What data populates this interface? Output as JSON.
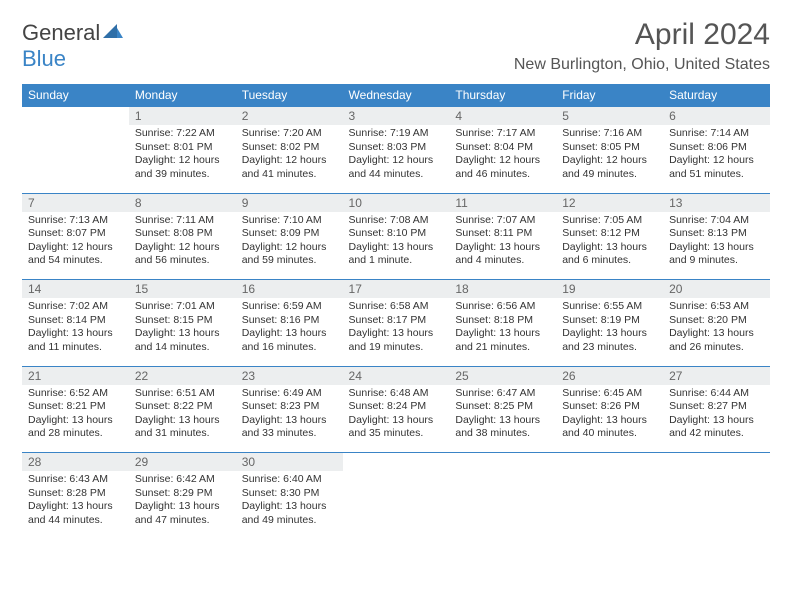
{
  "logo": {
    "text1": "General",
    "text2": "Blue"
  },
  "title": "April 2024",
  "location": "New Burlington, Ohio, United States",
  "colors": {
    "header_bg": "#3a84c6",
    "header_text": "#ffffff",
    "daynum_bg": "#eceeef",
    "border": "#3a84c6",
    "body_text": "#333333",
    "title_text": "#555555"
  },
  "day_headers": [
    "Sunday",
    "Monday",
    "Tuesday",
    "Wednesday",
    "Thursday",
    "Friday",
    "Saturday"
  ],
  "weeks": [
    [
      null,
      {
        "n": "1",
        "sr": "Sunrise: 7:22 AM",
        "ss": "Sunset: 8:01 PM",
        "dl": "Daylight: 12 hours and 39 minutes."
      },
      {
        "n": "2",
        "sr": "Sunrise: 7:20 AM",
        "ss": "Sunset: 8:02 PM",
        "dl": "Daylight: 12 hours and 41 minutes."
      },
      {
        "n": "3",
        "sr": "Sunrise: 7:19 AM",
        "ss": "Sunset: 8:03 PM",
        "dl": "Daylight: 12 hours and 44 minutes."
      },
      {
        "n": "4",
        "sr": "Sunrise: 7:17 AM",
        "ss": "Sunset: 8:04 PM",
        "dl": "Daylight: 12 hours and 46 minutes."
      },
      {
        "n": "5",
        "sr": "Sunrise: 7:16 AM",
        "ss": "Sunset: 8:05 PM",
        "dl": "Daylight: 12 hours and 49 minutes."
      },
      {
        "n": "6",
        "sr": "Sunrise: 7:14 AM",
        "ss": "Sunset: 8:06 PM",
        "dl": "Daylight: 12 hours and 51 minutes."
      }
    ],
    [
      {
        "n": "7",
        "sr": "Sunrise: 7:13 AM",
        "ss": "Sunset: 8:07 PM",
        "dl": "Daylight: 12 hours and 54 minutes."
      },
      {
        "n": "8",
        "sr": "Sunrise: 7:11 AM",
        "ss": "Sunset: 8:08 PM",
        "dl": "Daylight: 12 hours and 56 minutes."
      },
      {
        "n": "9",
        "sr": "Sunrise: 7:10 AM",
        "ss": "Sunset: 8:09 PM",
        "dl": "Daylight: 12 hours and 59 minutes."
      },
      {
        "n": "10",
        "sr": "Sunrise: 7:08 AM",
        "ss": "Sunset: 8:10 PM",
        "dl": "Daylight: 13 hours and 1 minute."
      },
      {
        "n": "11",
        "sr": "Sunrise: 7:07 AM",
        "ss": "Sunset: 8:11 PM",
        "dl": "Daylight: 13 hours and 4 minutes."
      },
      {
        "n": "12",
        "sr": "Sunrise: 7:05 AM",
        "ss": "Sunset: 8:12 PM",
        "dl": "Daylight: 13 hours and 6 minutes."
      },
      {
        "n": "13",
        "sr": "Sunrise: 7:04 AM",
        "ss": "Sunset: 8:13 PM",
        "dl": "Daylight: 13 hours and 9 minutes."
      }
    ],
    [
      {
        "n": "14",
        "sr": "Sunrise: 7:02 AM",
        "ss": "Sunset: 8:14 PM",
        "dl": "Daylight: 13 hours and 11 minutes."
      },
      {
        "n": "15",
        "sr": "Sunrise: 7:01 AM",
        "ss": "Sunset: 8:15 PM",
        "dl": "Daylight: 13 hours and 14 minutes."
      },
      {
        "n": "16",
        "sr": "Sunrise: 6:59 AM",
        "ss": "Sunset: 8:16 PM",
        "dl": "Daylight: 13 hours and 16 minutes."
      },
      {
        "n": "17",
        "sr": "Sunrise: 6:58 AM",
        "ss": "Sunset: 8:17 PM",
        "dl": "Daylight: 13 hours and 19 minutes."
      },
      {
        "n": "18",
        "sr": "Sunrise: 6:56 AM",
        "ss": "Sunset: 8:18 PM",
        "dl": "Daylight: 13 hours and 21 minutes."
      },
      {
        "n": "19",
        "sr": "Sunrise: 6:55 AM",
        "ss": "Sunset: 8:19 PM",
        "dl": "Daylight: 13 hours and 23 minutes."
      },
      {
        "n": "20",
        "sr": "Sunrise: 6:53 AM",
        "ss": "Sunset: 8:20 PM",
        "dl": "Daylight: 13 hours and 26 minutes."
      }
    ],
    [
      {
        "n": "21",
        "sr": "Sunrise: 6:52 AM",
        "ss": "Sunset: 8:21 PM",
        "dl": "Daylight: 13 hours and 28 minutes."
      },
      {
        "n": "22",
        "sr": "Sunrise: 6:51 AM",
        "ss": "Sunset: 8:22 PM",
        "dl": "Daylight: 13 hours and 31 minutes."
      },
      {
        "n": "23",
        "sr": "Sunrise: 6:49 AM",
        "ss": "Sunset: 8:23 PM",
        "dl": "Daylight: 13 hours and 33 minutes."
      },
      {
        "n": "24",
        "sr": "Sunrise: 6:48 AM",
        "ss": "Sunset: 8:24 PM",
        "dl": "Daylight: 13 hours and 35 minutes."
      },
      {
        "n": "25",
        "sr": "Sunrise: 6:47 AM",
        "ss": "Sunset: 8:25 PM",
        "dl": "Daylight: 13 hours and 38 minutes."
      },
      {
        "n": "26",
        "sr": "Sunrise: 6:45 AM",
        "ss": "Sunset: 8:26 PM",
        "dl": "Daylight: 13 hours and 40 minutes."
      },
      {
        "n": "27",
        "sr": "Sunrise: 6:44 AM",
        "ss": "Sunset: 8:27 PM",
        "dl": "Daylight: 13 hours and 42 minutes."
      }
    ],
    [
      {
        "n": "28",
        "sr": "Sunrise: 6:43 AM",
        "ss": "Sunset: 8:28 PM",
        "dl": "Daylight: 13 hours and 44 minutes."
      },
      {
        "n": "29",
        "sr": "Sunrise: 6:42 AM",
        "ss": "Sunset: 8:29 PM",
        "dl": "Daylight: 13 hours and 47 minutes."
      },
      {
        "n": "30",
        "sr": "Sunrise: 6:40 AM",
        "ss": "Sunset: 8:30 PM",
        "dl": "Daylight: 13 hours and 49 minutes."
      },
      null,
      null,
      null,
      null
    ]
  ]
}
